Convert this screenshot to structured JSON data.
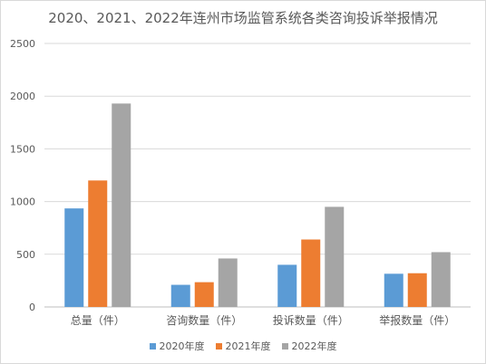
{
  "chart_data": {
    "type": "bar",
    "title": "2020、2021、2022年连州市场监管系统各类咨询投诉举报情况",
    "categories": [
      "总量（件）",
      "咨询数量（件）",
      "投诉数量（件）",
      "举报数量（件）"
    ],
    "series": [
      {
        "name": "2020年度",
        "color": "#5b9bd5",
        "values": [
          935,
          210,
          400,
          315
        ]
      },
      {
        "name": "2021年度",
        "color": "#ed7d31",
        "values": [
          1200,
          235,
          640,
          320
        ]
      },
      {
        "name": "2022年度",
        "color": "#a5a5a5",
        "values": [
          1930,
          460,
          950,
          520
        ]
      }
    ],
    "ylim": [
      0,
      2500
    ],
    "yticks": [
      0,
      500,
      1000,
      1500,
      2000,
      2500
    ],
    "grid": true,
    "legend": "bottom"
  }
}
